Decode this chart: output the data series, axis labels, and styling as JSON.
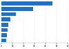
{
  "values": [
    46000,
    29000,
    13000,
    8000,
    6500,
    5500,
    4800,
    4200
  ],
  "bar_color": "#2272c3",
  "background_color": "#ffffff",
  "xlim": [
    0,
    60000
  ],
  "grid_color": "#e0e0e0",
  "bar_height": 0.72,
  "figsize": [
    1.0,
    0.71
  ],
  "dpi": 100,
  "xticks": [
    0,
    10000,
    20000,
    30000,
    40000,
    50000,
    60000
  ]
}
